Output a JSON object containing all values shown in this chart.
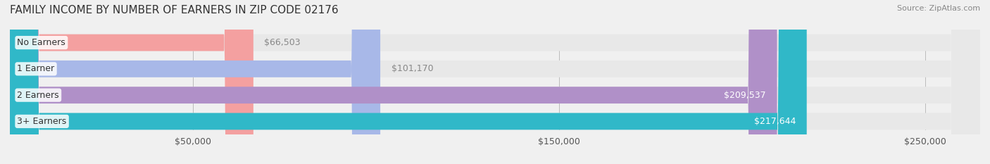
{
  "title": "FAMILY INCOME BY NUMBER OF EARNERS IN ZIP CODE 02176",
  "source": "Source: ZipAtlas.com",
  "categories": [
    "No Earners",
    "1 Earner",
    "2 Earners",
    "3+ Earners"
  ],
  "values": [
    66503,
    101170,
    209537,
    217644
  ],
  "bar_colors": [
    "#f4a0a0",
    "#a8b8e8",
    "#b090c8",
    "#30b8c8"
  ],
  "label_colors": [
    "#888888",
    "#888888",
    "#ffffff",
    "#ffffff"
  ],
  "value_labels": [
    "$66,503",
    "$101,170",
    "$209,537",
    "$217,644"
  ],
  "x_ticks": [
    50000,
    150000,
    250000
  ],
  "x_tick_labels": [
    "$50,000",
    "$150,000",
    "$250,000"
  ],
  "xlim": [
    0,
    265000
  ],
  "background_color": "#f0f0f0",
  "bar_background_color": "#e8e8e8",
  "title_fontsize": 11,
  "source_fontsize": 8,
  "tick_fontsize": 9,
  "label_fontsize": 9,
  "value_fontsize": 9
}
